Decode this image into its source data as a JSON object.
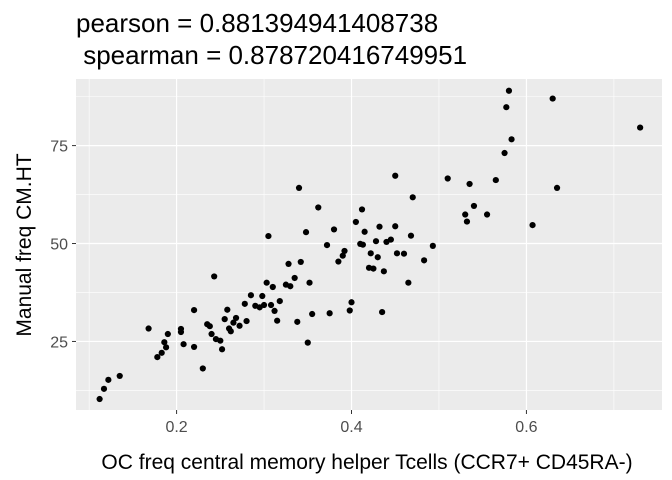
{
  "chart_data": {
    "type": "scatter",
    "title_lines": [
      "pearson = 0.881394941408738",
      " spearman = 0.878720416749951"
    ],
    "xlabel": "OC freq central memory helper Tcells (CCR7+ CD45RA-)",
    "ylabel": "Manual freq CM.HT",
    "xlim": [
      0.085,
      0.755
    ],
    "ylim": [
      7.5,
      92
    ],
    "x_ticks": [
      0.2,
      0.4,
      0.6
    ],
    "x_tick_labels": [
      "0.2",
      "0.4",
      "0.6"
    ],
    "y_ticks": [
      25,
      50,
      75
    ],
    "y_tick_labels": [
      "25",
      "50",
      "75"
    ],
    "grid": true,
    "colors": {
      "panel": "#ebebeb",
      "grid": "#ffffff",
      "point": "#000000",
      "tick": "#333333"
    },
    "points": [
      [
        0.112,
        10.3
      ],
      [
        0.117,
        12.9
      ],
      [
        0.122,
        15.2
      ],
      [
        0.135,
        16.2
      ],
      [
        0.168,
        28.3
      ],
      [
        0.178,
        21.0
      ],
      [
        0.183,
        22.1
      ],
      [
        0.186,
        24.8
      ],
      [
        0.188,
        23.5
      ],
      [
        0.19,
        26.9
      ],
      [
        0.205,
        27.4
      ],
      [
        0.205,
        28.2
      ],
      [
        0.208,
        24.3
      ],
      [
        0.22,
        23.6
      ],
      [
        0.22,
        33.0
      ],
      [
        0.23,
        18.1
      ],
      [
        0.235,
        29.4
      ],
      [
        0.238,
        28.9
      ],
      [
        0.24,
        26.9
      ],
      [
        0.243,
        41.6
      ],
      [
        0.245,
        25.6
      ],
      [
        0.25,
        25.2
      ],
      [
        0.252,
        23.0
      ],
      [
        0.255,
        30.7
      ],
      [
        0.258,
        33.1
      ],
      [
        0.26,
        28.3
      ],
      [
        0.262,
        27.6
      ],
      [
        0.265,
        29.8
      ],
      [
        0.268,
        31.0
      ],
      [
        0.272,
        29.0
      ],
      [
        0.278,
        34.6
      ],
      [
        0.28,
        30.2
      ],
      [
        0.285,
        36.8
      ],
      [
        0.29,
        34.1
      ],
      [
        0.295,
        33.7
      ],
      [
        0.298,
        36.6
      ],
      [
        0.3,
        34.3
      ],
      [
        0.303,
        40.0
      ],
      [
        0.305,
        51.9
      ],
      [
        0.308,
        34.3
      ],
      [
        0.31,
        38.9
      ],
      [
        0.312,
        32.8
      ],
      [
        0.315,
        30.3
      ],
      [
        0.318,
        35.3
      ],
      [
        0.325,
        39.5
      ],
      [
        0.328,
        44.8
      ],
      [
        0.33,
        39.1
      ],
      [
        0.335,
        41.2
      ],
      [
        0.338,
        30.0
      ],
      [
        0.34,
        64.2
      ],
      [
        0.342,
        45.3
      ],
      [
        0.348,
        52.9
      ],
      [
        0.35,
        24.7
      ],
      [
        0.352,
        40.0
      ],
      [
        0.355,
        32.0
      ],
      [
        0.362,
        59.2
      ],
      [
        0.372,
        49.6
      ],
      [
        0.375,
        32.2
      ],
      [
        0.38,
        53.6
      ],
      [
        0.385,
        45.4
      ],
      [
        0.39,
        46.9
      ],
      [
        0.392,
        48.1
      ],
      [
        0.398,
        32.9
      ],
      [
        0.4,
        35.0
      ],
      [
        0.405,
        55.5
      ],
      [
        0.41,
        49.9
      ],
      [
        0.412,
        58.7
      ],
      [
        0.413,
        49.7
      ],
      [
        0.415,
        53.0
      ],
      [
        0.42,
        43.8
      ],
      [
        0.422,
        47.5
      ],
      [
        0.425,
        43.6
      ],
      [
        0.428,
        50.6
      ],
      [
        0.43,
        46.5
      ],
      [
        0.432,
        54.3
      ],
      [
        0.435,
        32.5
      ],
      [
        0.437,
        42.9
      ],
      [
        0.44,
        50.4
      ],
      [
        0.445,
        51.0
      ],
      [
        0.45,
        54.4
      ],
      [
        0.45,
        67.3
      ],
      [
        0.452,
        47.5
      ],
      [
        0.46,
        47.4
      ],
      [
        0.465,
        40.0
      ],
      [
        0.468,
        52.0
      ],
      [
        0.47,
        61.8
      ],
      [
        0.483,
        45.7
      ],
      [
        0.493,
        49.4
      ],
      [
        0.51,
        66.6
      ],
      [
        0.53,
        57.4
      ],
      [
        0.532,
        55.6
      ],
      [
        0.535,
        65.2
      ],
      [
        0.54,
        59.6
      ],
      [
        0.555,
        57.4
      ],
      [
        0.565,
        66.2
      ],
      [
        0.575,
        73.1
      ],
      [
        0.577,
        84.8
      ],
      [
        0.58,
        89.0
      ],
      [
        0.583,
        76.6
      ],
      [
        0.607,
        54.7
      ],
      [
        0.63,
        87.0
      ],
      [
        0.635,
        64.2
      ],
      [
        0.73,
        79.6
      ]
    ]
  }
}
